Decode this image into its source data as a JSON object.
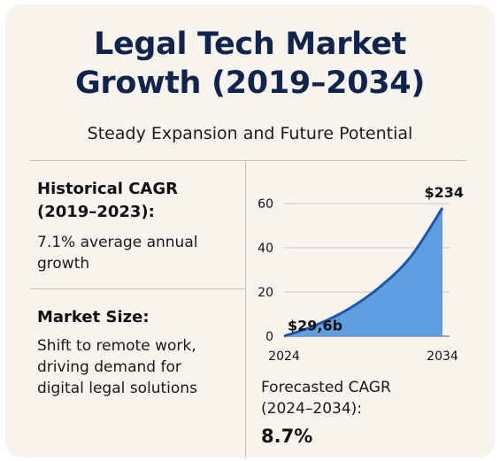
{
  "title": {
    "line1": "Legal Tech Market",
    "line2": "Growth (2019–2034)"
  },
  "subtitle": "Steady Expansion and Future Potential",
  "historical": {
    "heading_line1": "Historical CAGR",
    "heading_line2": "(2019–2023):",
    "text_line1": "7.1% average annual",
    "text_line2": "growth"
  },
  "market_size": {
    "heading": "Market Size:",
    "text_line1": "Shift to remote work,",
    "text_line2": "driving demand for",
    "text_line3": "digital legal solutions"
  },
  "forecast": {
    "label_line1": "Forecasted CAGR",
    "label_line2": "(2024–2034):",
    "value": "8.7%"
  },
  "colors": {
    "title": "#10244d",
    "line": "#1f56a8",
    "fill": "#5d9fe0",
    "grid": "#c9c9c9"
  },
  "chart_data": {
    "type": "area",
    "x": [
      2024,
      2026,
      2028,
      2030,
      2032,
      2034
    ],
    "values": [
      0,
      5,
      12,
      22,
      36,
      58
    ],
    "ylim": [
      0,
      60
    ],
    "yticks": [
      "0",
      "20",
      "40",
      "60"
    ],
    "xticks": [
      "2024",
      "2034"
    ],
    "annotations": {
      "start": "$29,6b",
      "end": "$234"
    },
    "grid": true
  }
}
